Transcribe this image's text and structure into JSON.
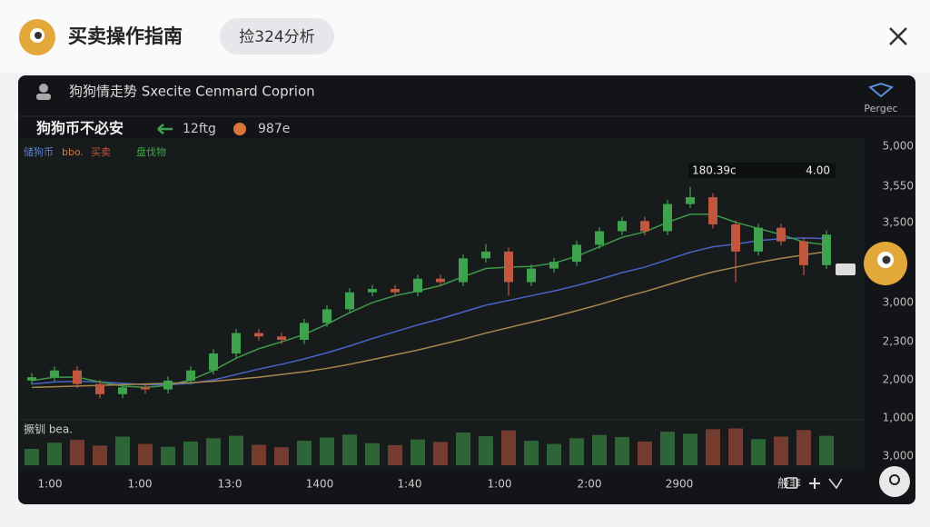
{
  "header": {
    "title": "买卖操作指南",
    "tab": "捡324分析"
  },
  "panel": {
    "title": "狗狗情走势 Sxecite Cenmard Coprion",
    "badge": "Pergec",
    "coin": "狗狗币不必安",
    "change": "12ftg",
    "price": "987e",
    "legend": [
      "储狗币",
      "bbo.",
      "买卖",
      "盘伐物"
    ],
    "volume_label": "撅钏 bea.",
    "tooltip": [
      "180.39c",
      "4.00"
    ],
    "toolbar": "般非",
    "price_axis_labels": [
      "5,000",
      "3,550",
      "3,500",
      "3,000",
      "2,300",
      "2,000",
      "1,000",
      "3,000"
    ],
    "time_axis_labels": [
      "1:00",
      "1:00",
      "13:0",
      "1400",
      "1:40",
      "1:00",
      "2:00",
      "2900"
    ]
  },
  "chart_data": {
    "type": "candlestick",
    "ylim": [
      1000,
      5000
    ],
    "up_color": "#3fa34d",
    "down_color": "#c0573f",
    "candles": [
      [
        1550,
        1660,
        1490,
        1600
      ],
      [
        1600,
        1760,
        1540,
        1700
      ],
      [
        1700,
        1760,
        1440,
        1500
      ],
      [
        1500,
        1560,
        1290,
        1350
      ],
      [
        1350,
        1510,
        1290,
        1450
      ],
      [
        1450,
        1510,
        1360,
        1420
      ],
      [
        1420,
        1610,
        1360,
        1550
      ],
      [
        1550,
        1760,
        1490,
        1700
      ],
      [
        1700,
        2010,
        1640,
        1950
      ],
      [
        1950,
        2310,
        1890,
        2250
      ],
      [
        2250,
        2310,
        2140,
        2200
      ],
      [
        2200,
        2260,
        2090,
        2150
      ],
      [
        2150,
        2460,
        2090,
        2400
      ],
      [
        2400,
        2660,
        2340,
        2600
      ],
      [
        2600,
        2910,
        2540,
        2850
      ],
      [
        2850,
        2960,
        2790,
        2900
      ],
      [
        2900,
        2960,
        2790,
        2850
      ],
      [
        2850,
        3110,
        2790,
        3050
      ],
      [
        3050,
        3110,
        2940,
        3000
      ],
      [
        3000,
        3410,
        2940,
        3350
      ],
      [
        3350,
        3560,
        3290,
        3450
      ],
      [
        3450,
        3510,
        2800,
        3000
      ],
      [
        3000,
        3260,
        2940,
        3200
      ],
      [
        3200,
        3360,
        3140,
        3300
      ],
      [
        3300,
        3610,
        3240,
        3550
      ],
      [
        3550,
        3810,
        3490,
        3750
      ],
      [
        3750,
        3960,
        3690,
        3900
      ],
      [
        3900,
        3960,
        3690,
        3750
      ],
      [
        3750,
        4210,
        3690,
        4150
      ],
      [
        4150,
        4400,
        4090,
        4250
      ],
      [
        4250,
        4310,
        3790,
        3850
      ],
      [
        3850,
        3910,
        3000,
        3450
      ],
      [
        3450,
        3860,
        3390,
        3800
      ],
      [
        3800,
        3860,
        3540,
        3600
      ],
      [
        3600,
        3660,
        3100,
        3250
      ],
      [
        3250,
        3760,
        3190,
        3700
      ]
    ],
    "series": [
      {
        "color": "#4a63c8",
        "values": [
          1500,
          1530,
          1540,
          1530,
          1510,
          1490,
          1490,
          1510,
          1560,
          1640,
          1720,
          1790,
          1870,
          1960,
          2060,
          2170,
          2270,
          2370,
          2460,
          2560,
          2660,
          2730,
          2800,
          2870,
          2950,
          3040,
          3140,
          3220,
          3330,
          3440,
          3520,
          3560,
          3610,
          3640,
          3650,
          3640
        ]
      },
      {
        "color": "#3e9a4a",
        "values": [
          1550,
          1600,
          1600,
          1530,
          1470,
          1450,
          1480,
          1560,
          1700,
          1880,
          2020,
          2120,
          2230,
          2380,
          2550,
          2700,
          2800,
          2870,
          2950,
          3080,
          3200,
          3220,
          3230,
          3280,
          3380,
          3520,
          3660,
          3740,
          3880,
          4000,
          4000,
          3880,
          3790,
          3700,
          3590,
          3550
        ]
      },
      {
        "color": "#a8884a",
        "values": [
          1450,
          1460,
          1470,
          1480,
          1490,
          1500,
          1510,
          1520,
          1540,
          1570,
          1600,
          1640,
          1680,
          1730,
          1790,
          1860,
          1930,
          2000,
          2080,
          2160,
          2250,
          2330,
          2410,
          2490,
          2580,
          2670,
          2770,
          2860,
          2960,
          3060,
          3150,
          3220,
          3290,
          3350,
          3400,
          3450
        ]
      }
    ],
    "volumes": [
      40,
      55,
      62,
      48,
      70,
      52,
      45,
      58,
      66,
      72,
      50,
      44,
      60,
      68,
      75,
      54,
      49,
      63,
      57,
      80,
      71,
      85,
      60,
      52,
      66,
      74,
      69,
      58,
      82,
      77,
      88,
      90,
      64,
      70,
      86,
      72
    ],
    "volume_ylim": [
      0,
      100
    ]
  }
}
